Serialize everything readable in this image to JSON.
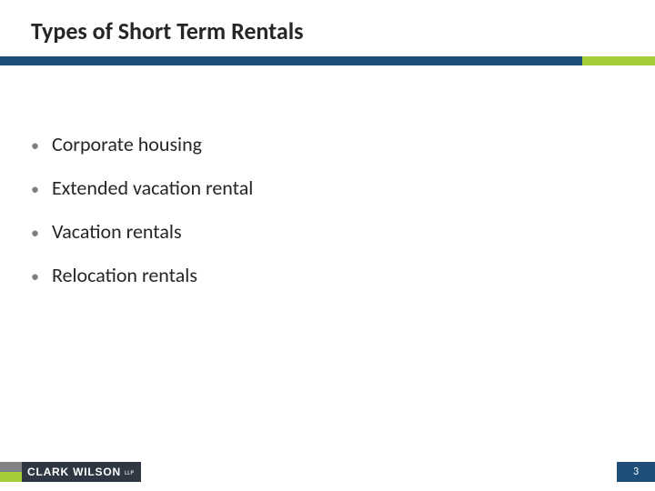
{
  "title": "Types of Short Term Rentals",
  "bullets": [
    "Corporate housing",
    "Extended vacation rental",
    "Vacation rentals",
    "Relocation rentals"
  ],
  "divider": {
    "blue_color": "#1f4e79",
    "green_color": "#a3cd39"
  },
  "footer": {
    "logo_name": "CLARK WILSON",
    "logo_suffix": "LLP",
    "logo_bg_color": "#2f3842",
    "accent_top_color": "#808285",
    "accent_bottom_color": "#a3cd39"
  },
  "page_number": "3",
  "page_number_bg": "#1f4e79"
}
